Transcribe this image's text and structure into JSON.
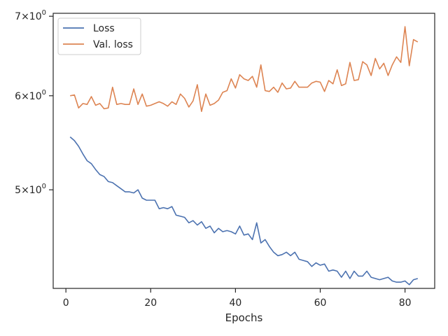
{
  "chart_data": {
    "type": "line",
    "title": "",
    "xlabel": "Epochs",
    "ylabel": "",
    "yscale": "log",
    "xlim": [
      -3,
      87
    ],
    "ylim": [
      4.13,
      7.04
    ],
    "grid": false,
    "legend_position": "top-left",
    "x_ticks": [
      {
        "value": 0,
        "label": "0"
      },
      {
        "value": 20,
        "label": "20"
      },
      {
        "value": 40,
        "label": "40"
      },
      {
        "value": 60,
        "label": "60"
      },
      {
        "value": 80,
        "label": "80"
      }
    ],
    "y_ticks": [
      {
        "value": 5,
        "base": "5",
        "exp": "0"
      },
      {
        "value": 6,
        "base": "6",
        "exp": "0"
      },
      {
        "value": 7,
        "base": "7",
        "exp": "0"
      }
    ],
    "series": [
      {
        "name": "Loss",
        "color": "#4c72b0",
        "x": [
          1,
          2,
          3,
          4,
          5,
          6,
          7,
          8,
          9,
          10,
          11,
          12,
          13,
          14,
          15,
          16,
          17,
          18,
          19,
          20,
          21,
          22,
          23,
          24,
          25,
          26,
          27,
          28,
          29,
          30,
          31,
          32,
          33,
          34,
          35,
          36,
          37,
          38,
          39,
          40,
          41,
          42,
          43,
          44,
          45,
          46,
          47,
          48,
          49,
          50,
          51,
          52,
          53,
          54,
          55,
          56,
          57,
          58,
          59,
          60,
          61,
          62,
          63,
          64,
          65,
          66,
          67,
          68,
          69,
          70,
          71,
          72,
          73,
          74,
          75,
          76,
          77,
          78,
          79,
          80,
          81,
          82,
          83
        ],
        "values": [
          5.54,
          5.5,
          5.44,
          5.36,
          5.29,
          5.26,
          5.2,
          5.15,
          5.13,
          5.08,
          5.07,
          5.04,
          5.01,
          4.98,
          4.98,
          4.97,
          5.0,
          4.92,
          4.9,
          4.9,
          4.9,
          4.82,
          4.83,
          4.82,
          4.84,
          4.76,
          4.75,
          4.74,
          4.69,
          4.71,
          4.67,
          4.7,
          4.64,
          4.66,
          4.6,
          4.64,
          4.61,
          4.62,
          4.61,
          4.59,
          4.66,
          4.58,
          4.59,
          4.54,
          4.69,
          4.51,
          4.54,
          4.48,
          4.43,
          4.4,
          4.41,
          4.43,
          4.4,
          4.43,
          4.37,
          4.36,
          4.35,
          4.31,
          4.34,
          4.32,
          4.33,
          4.27,
          4.28,
          4.27,
          4.22,
          4.27,
          4.21,
          4.27,
          4.23,
          4.23,
          4.27,
          4.22,
          4.21,
          4.2,
          4.21,
          4.22,
          4.19,
          4.18,
          4.18,
          4.19,
          4.16,
          4.2,
          4.21
        ]
      },
      {
        "name": "Val. loss",
        "color": "#dd8452",
        "x": [
          1,
          2,
          3,
          4,
          5,
          6,
          7,
          8,
          9,
          10,
          11,
          12,
          13,
          14,
          15,
          16,
          17,
          18,
          19,
          20,
          21,
          22,
          23,
          24,
          25,
          26,
          27,
          28,
          29,
          30,
          31,
          32,
          33,
          34,
          35,
          36,
          37,
          38,
          39,
          40,
          41,
          42,
          43,
          44,
          45,
          46,
          47,
          48,
          49,
          50,
          51,
          52,
          53,
          54,
          55,
          56,
          57,
          58,
          59,
          60,
          61,
          62,
          63,
          64,
          65,
          66,
          67,
          68,
          69,
          70,
          71,
          72,
          73,
          74,
          75,
          76,
          77,
          78,
          79,
          80,
          81,
          82,
          83
        ],
        "values": [
          6.0,
          6.01,
          5.86,
          5.91,
          5.9,
          5.99,
          5.89,
          5.91,
          5.85,
          5.86,
          6.1,
          5.9,
          5.91,
          5.9,
          5.9,
          6.08,
          5.9,
          6.02,
          5.88,
          5.89,
          5.91,
          5.93,
          5.91,
          5.88,
          5.93,
          5.9,
          6.02,
          5.97,
          5.87,
          5.94,
          6.13,
          5.82,
          6.02,
          5.89,
          5.91,
          5.95,
          6.04,
          6.06,
          6.2,
          6.09,
          6.25,
          6.2,
          6.18,
          6.23,
          6.1,
          6.37,
          6.06,
          6.05,
          6.1,
          6.04,
          6.15,
          6.08,
          6.09,
          6.17,
          6.1,
          6.1,
          6.1,
          6.15,
          6.17,
          6.16,
          6.05,
          6.18,
          6.14,
          6.31,
          6.12,
          6.14,
          6.4,
          6.18,
          6.19,
          6.41,
          6.37,
          6.24,
          6.45,
          6.32,
          6.39,
          6.24,
          6.37,
          6.47,
          6.4,
          6.86,
          6.36,
          6.69,
          6.66
        ]
      }
    ]
  }
}
